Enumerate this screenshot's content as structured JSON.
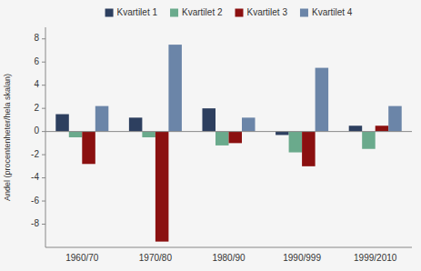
{
  "chart_data": {
    "type": "bar",
    "categories": [
      "1960/70",
      "1970/80",
      "1980/90",
      "1990/999",
      "1999/2010"
    ],
    "series": [
      {
        "name": "Kvartilet 1",
        "color": "#2d3f5f",
        "values": [
          1.5,
          1.2,
          2.0,
          -0.3,
          0.5
        ]
      },
      {
        "name": "Kvartilet 2",
        "color": "#6aaa8c",
        "values": [
          -0.5,
          -0.5,
          -1.2,
          -1.8,
          -1.5
        ]
      },
      {
        "name": "Kvartilet 3",
        "color": "#8b1010",
        "values": [
          -2.8,
          -9.5,
          -1.0,
          -3.0,
          0.5
        ]
      },
      {
        "name": "Kvartilet 4",
        "color": "#6b85a8",
        "values": [
          2.2,
          7.5,
          1.2,
          5.5,
          2.2
        ]
      }
    ],
    "ylim": [
      -10,
      9
    ],
    "yticks": [
      8,
      6,
      4,
      2,
      0,
      -2,
      -4,
      -6,
      -8
    ],
    "ylabel": "Andel (procentenheter/hela skalan)",
    "grid": false,
    "legend": "top"
  }
}
